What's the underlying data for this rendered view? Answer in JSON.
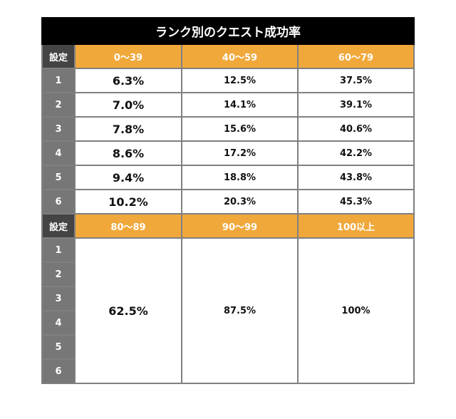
{
  "title": "ランク別のクエスト成功率",
  "section1": {
    "setting_label": "設定",
    "ranges": [
      "0〜39",
      "40〜59",
      "60〜79"
    ],
    "rows": [
      {
        "setting": "1",
        "values": [
          "6.3%",
          "12.5%",
          "37.5%"
        ]
      },
      {
        "setting": "2",
        "values": [
          "7.0%",
          "14.1%",
          "39.1%"
        ]
      },
      {
        "setting": "3",
        "values": [
          "7.8%",
          "15.6%",
          "40.6%"
        ]
      },
      {
        "setting": "4",
        "values": [
          "8.6%",
          "17.2%",
          "42.2%"
        ]
      },
      {
        "setting": "5",
        "values": [
          "9.4%",
          "18.8%",
          "43.8%"
        ]
      },
      {
        "setting": "6",
        "values": [
          "10.2%",
          "20.3%",
          "45.3%"
        ]
      }
    ]
  },
  "section2": {
    "setting_label": "設定",
    "ranges": [
      "80〜89",
      "90〜99",
      "100以上"
    ],
    "settings": [
      "1",
      "2",
      "3",
      "4",
      "5",
      "6"
    ],
    "values": [
      "62.5%",
      "87.5%",
      "100%"
    ]
  },
  "colors": {
    "header_accent": "#f1a83b",
    "title_bg": "#000000",
    "setting_bg": "#777777"
  }
}
